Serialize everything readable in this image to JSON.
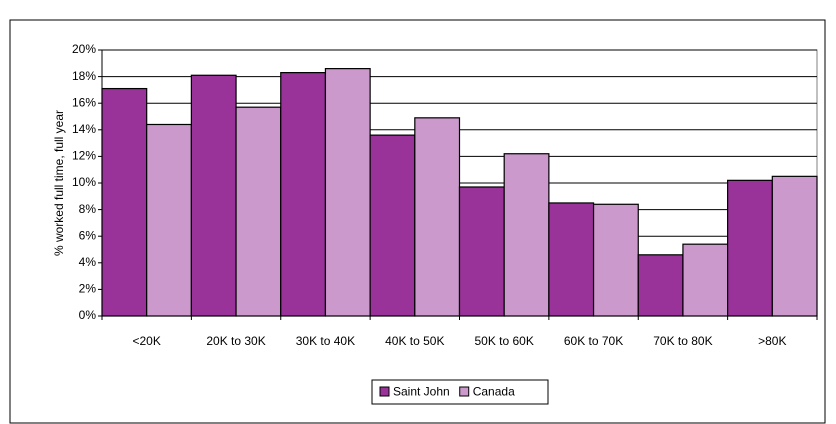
{
  "chart_data": {
    "type": "bar",
    "y_label": "% worked full time, full year",
    "categories": [
      "<20K",
      "20K to 30K",
      "30K to 40K",
      "40K to 50K",
      "50K to 60K",
      "60K to 70K",
      "70K to 80K",
      ">80K"
    ],
    "series": [
      {
        "name": "Saint John",
        "color": "#993399",
        "values": [
          17.1,
          18.1,
          18.3,
          13.6,
          9.7,
          8.5,
          4.6,
          10.2
        ]
      },
      {
        "name": "Canada",
        "color": "#cc99cc",
        "values": [
          14.4,
          15.7,
          18.6,
          14.9,
          12.2,
          8.4,
          5.4,
          10.5
        ]
      }
    ],
    "ylim": [
      0,
      20
    ],
    "yticks": [
      {
        "value": 0,
        "label": "0%"
      },
      {
        "value": 2,
        "label": "2%"
      },
      {
        "value": 4,
        "label": "4%"
      },
      {
        "value": 6,
        "label": "6%"
      },
      {
        "value": 8,
        "label": "8%"
      },
      {
        "value": 10,
        "label": "10%"
      },
      {
        "value": 12,
        "label": "12%"
      },
      {
        "value": 14,
        "label": "14%"
      },
      {
        "value": 16,
        "label": "16%"
      },
      {
        "value": 18,
        "label": "18%"
      },
      {
        "value": 20,
        "label": "20%"
      }
    ],
    "grid": true,
    "legend": "bottom"
  }
}
